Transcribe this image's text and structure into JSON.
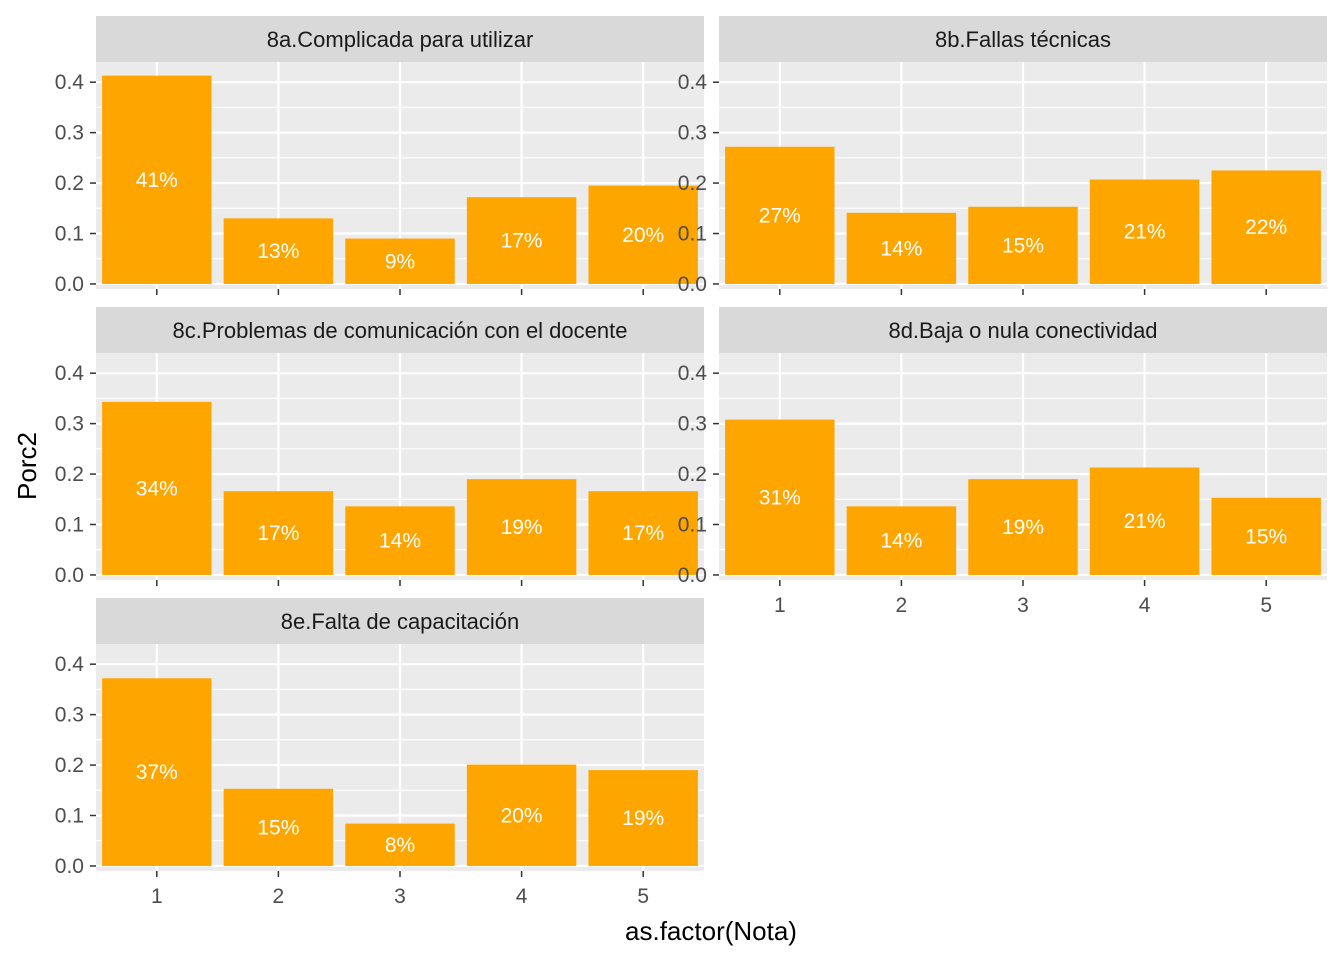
{
  "chart_data": {
    "type": "bar",
    "facet": true,
    "xlabel": "as.factor(Nota)",
    "ylabel": "Porc2",
    "ylim": [
      -0.01,
      0.44
    ],
    "yticks": [
      "0.0",
      "0.1",
      "0.2",
      "0.3",
      "0.4"
    ],
    "yvalues": [
      0.0,
      0.1,
      0.2,
      0.3,
      0.4
    ],
    "categories": [
      "1",
      "2",
      "3",
      "4",
      "5"
    ],
    "grid": true,
    "colors": {
      "bar": "#FFA500",
      "panel_bg": "#EBEBEB",
      "strip_bg": "#D9D9D9",
      "grid": "#FFFFFF",
      "label": "#FFFFFF"
    },
    "panels": [
      {
        "title": "8a.Complicada para utilizar",
        "values": [
          0.413,
          0.13,
          0.09,
          0.172,
          0.195
        ],
        "labels": [
          "41%",
          "13%",
          "9%",
          "17%",
          "20%"
        ]
      },
      {
        "title": "8b.Fallas técnicas",
        "values": [
          0.272,
          0.141,
          0.153,
          0.207,
          0.225
        ],
        "labels": [
          "27%",
          "14%",
          "15%",
          "21%",
          "22%"
        ]
      },
      {
        "title": "8c.Problemas de comunicación con el docente",
        "values": [
          0.343,
          0.166,
          0.136,
          0.19,
          0.166
        ],
        "labels": [
          "34%",
          "17%",
          "14%",
          "19%",
          "17%"
        ]
      },
      {
        "title": "8d.Baja o nula conectividad",
        "values": [
          0.308,
          0.136,
          0.19,
          0.213,
          0.153
        ],
        "labels": [
          "31%",
          "14%",
          "19%",
          "21%",
          "15%"
        ]
      },
      {
        "title": "8e.Falta de capacitación",
        "values": [
          0.372,
          0.153,
          0.084,
          0.201,
          0.19
        ],
        "labels": [
          "37%",
          "15%",
          "8%",
          "20%",
          "19%"
        ]
      }
    ]
  }
}
